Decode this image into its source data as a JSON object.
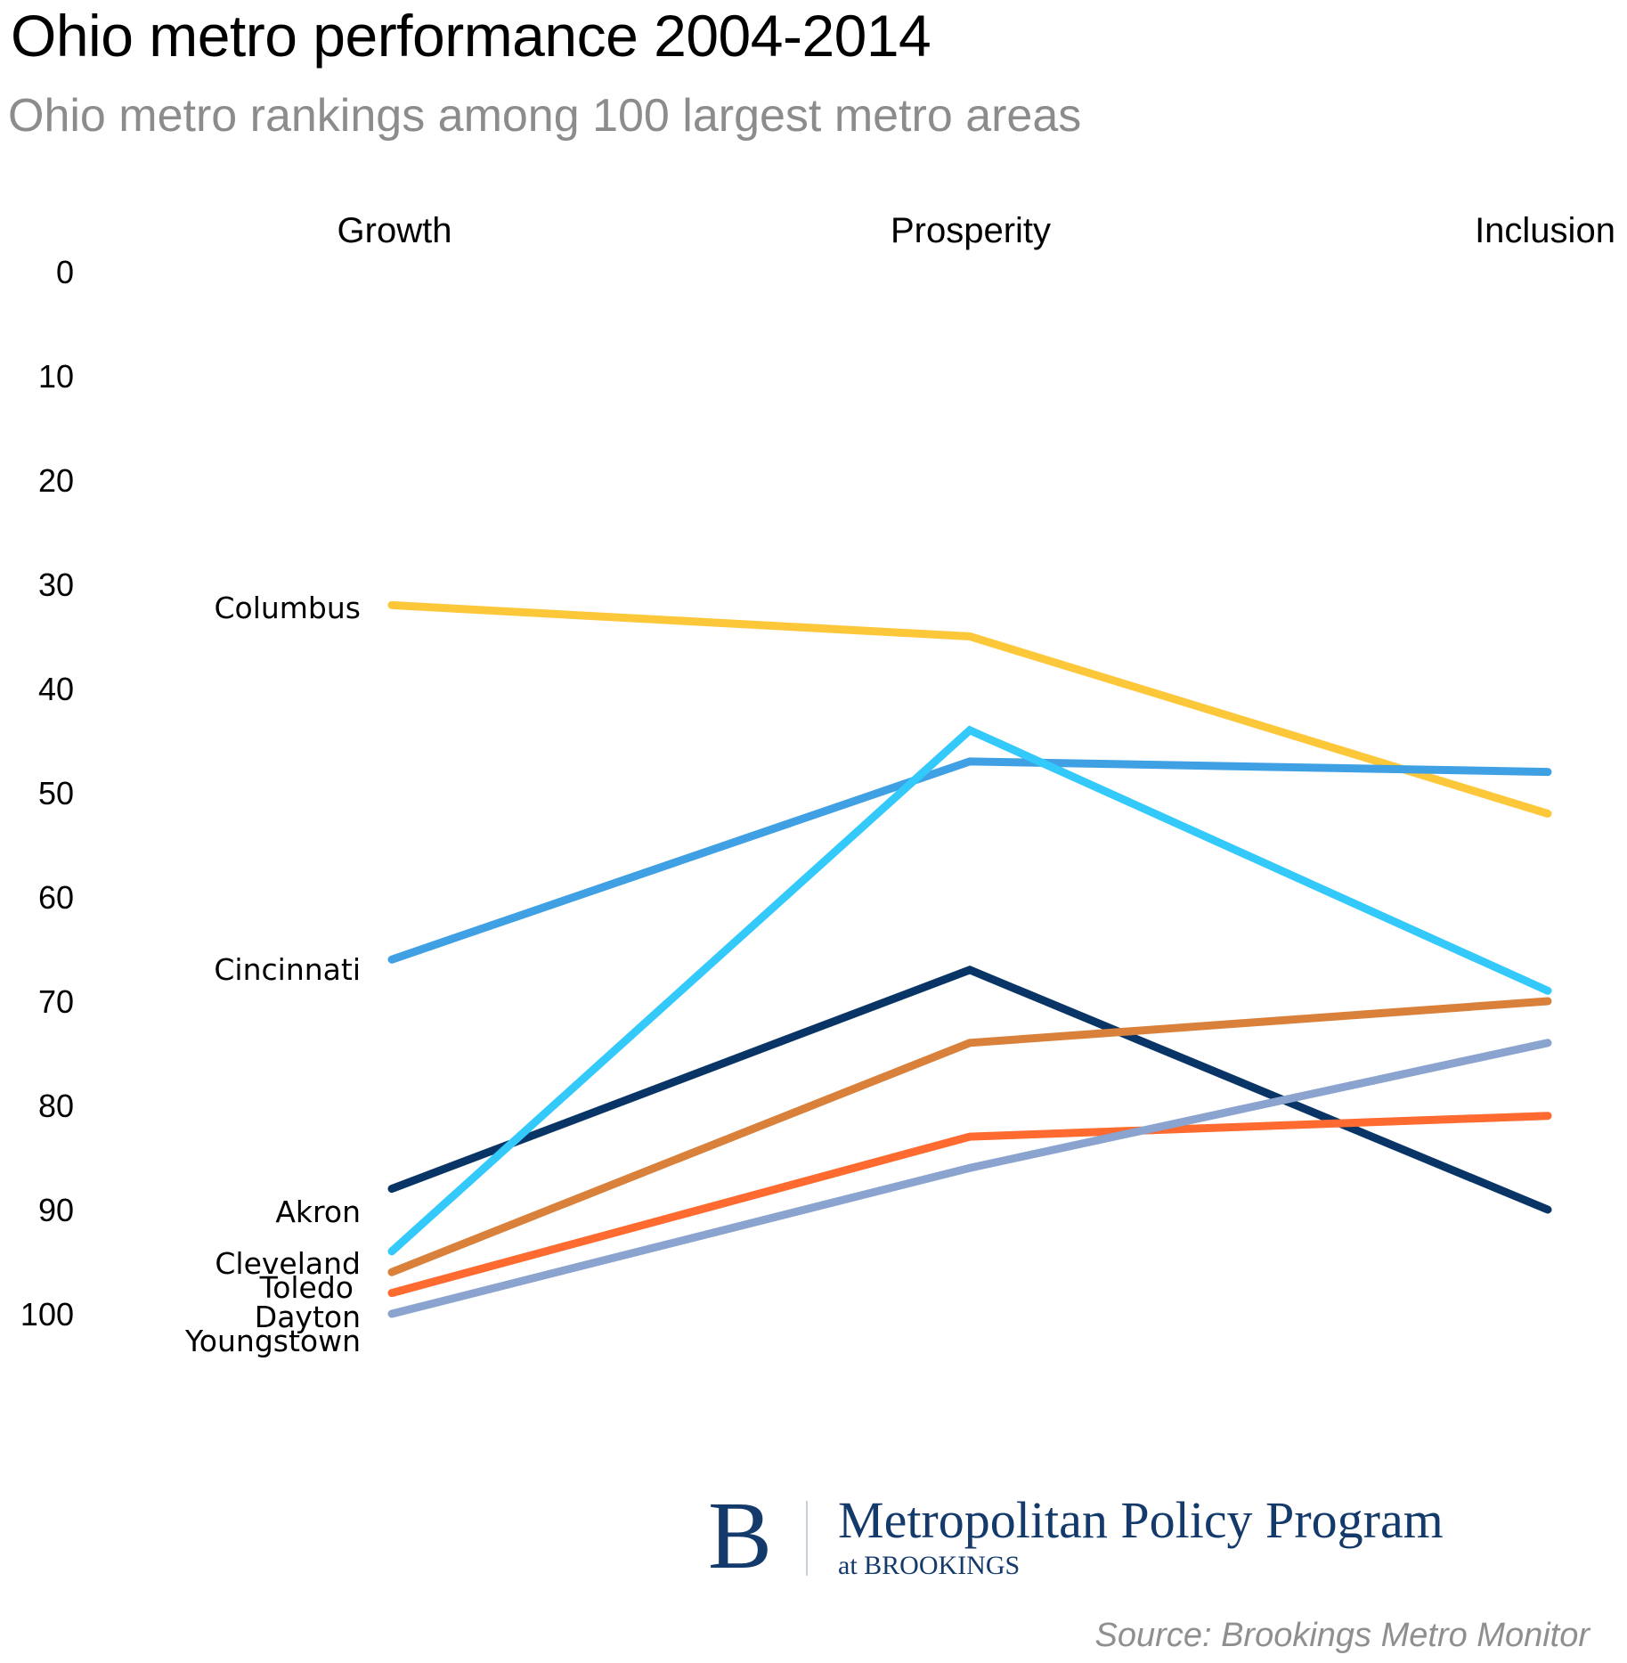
{
  "header": {
    "title": "Ohio metro performance 2004-2014",
    "subtitle": "Ohio metro rankings among 100 largest metro areas"
  },
  "chart_data": {
    "type": "line",
    "title": "Ohio metro performance 2004-2014",
    "subtitle": "Ohio metro rankings among 100 largest metro areas",
    "xlabel": "",
    "ylabel": "",
    "categories": [
      "Growth",
      "Prosperity",
      "Inclusion"
    ],
    "y_ticks": [
      "0",
      "10",
      "20",
      "30",
      "40",
      "50",
      "60",
      "70",
      "80",
      "90",
      "100"
    ],
    "ylim": [
      0,
      100
    ],
    "y_inverted": true,
    "grid": false,
    "legend": "direct labels at left of Growth axis",
    "series": [
      {
        "name": "Columbus",
        "values": [
          32,
          35,
          52
        ],
        "color": "#fdc73a"
      },
      {
        "name": "Cincinnati",
        "values": [
          66,
          47,
          48
        ],
        "color": "#40a0e4"
      },
      {
        "name": "Akron",
        "values": [
          88,
          67,
          90
        ],
        "color": "#083466"
      },
      {
        "name": "Cleveland",
        "values": [
          94,
          44,
          69
        ],
        "color": "#33c9fa"
      },
      {
        "name": "Toledo",
        "values": [
          96,
          74,
          70
        ],
        "color": "#d9803a"
      },
      {
        "name": "Dayton",
        "values": [
          98,
          83,
          81
        ],
        "color": "#fe6a2f"
      },
      {
        "name": "Youngstown",
        "values": [
          100,
          86,
          74
        ],
        "color": "#8aa3cf"
      }
    ],
    "label_positions_order": [
      "Columbus",
      "Cincinnati",
      "Akron",
      "Cleveland",
      "Toledo",
      "Dayton",
      "Youngstown"
    ]
  },
  "branding": {
    "logo_letter": "B",
    "logo_main": "Metropolitan Policy Program",
    "logo_sub": "at BROOKINGS",
    "logo_color": "#143a6b"
  },
  "footer": {
    "source": "Source: Brookings Metro Monitor"
  }
}
